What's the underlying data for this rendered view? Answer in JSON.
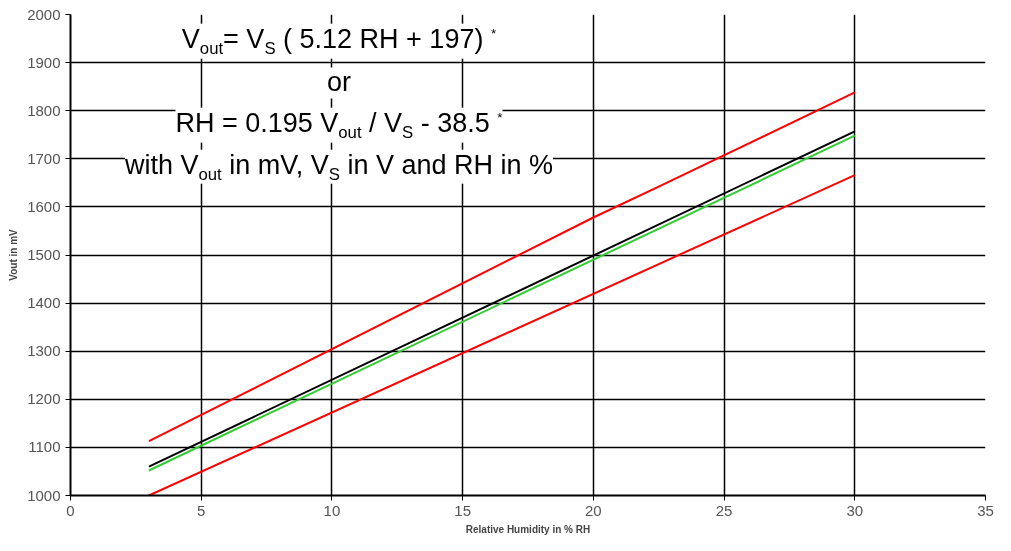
{
  "chart_data": {
    "type": "line",
    "xlabel": "Relative Humidity in % RH",
    "ylabel": "Vout in mV",
    "xlim": [
      0,
      35
    ],
    "xticks": [
      0,
      5,
      10,
      15,
      20,
      25,
      30,
      35
    ],
    "ylim": [
      1000,
      2000
    ],
    "yticks": [
      1000,
      1100,
      1200,
      1300,
      1400,
      1500,
      1600,
      1700,
      1800,
      1900,
      2000
    ],
    "grid": true,
    "line_style": "solid",
    "marker": "none",
    "series": [
      {
        "color": "#ff0000",
        "x": [
          3,
          20,
          22.5,
          30
        ],
        "values": [
          1113,
          1578,
          1642,
          1838
        ]
      },
      {
        "color": "#ff0000",
        "x": [
          3,
          30
        ],
        "values": [
          1000,
          1666
        ]
      },
      {
        "color": "#000000",
        "x": [
          3,
          30
        ],
        "values": [
          1060,
          1757
        ]
      },
      {
        "color": "#33cc33",
        "x": [
          3,
          30
        ],
        "values": [
          1052,
          1748
        ]
      }
    ],
    "annotations": [
      "V$_{out}$= V$_{S}$ ( 5.12 RH + 197) $^{*}$",
      "or",
      "RH = 0.195 V$_{out}$ / V$_{S}$ - 38.5 $^{*}$",
      "with V$_{out}$ in mV, V$_{S}$ in V and RH in %"
    ]
  }
}
